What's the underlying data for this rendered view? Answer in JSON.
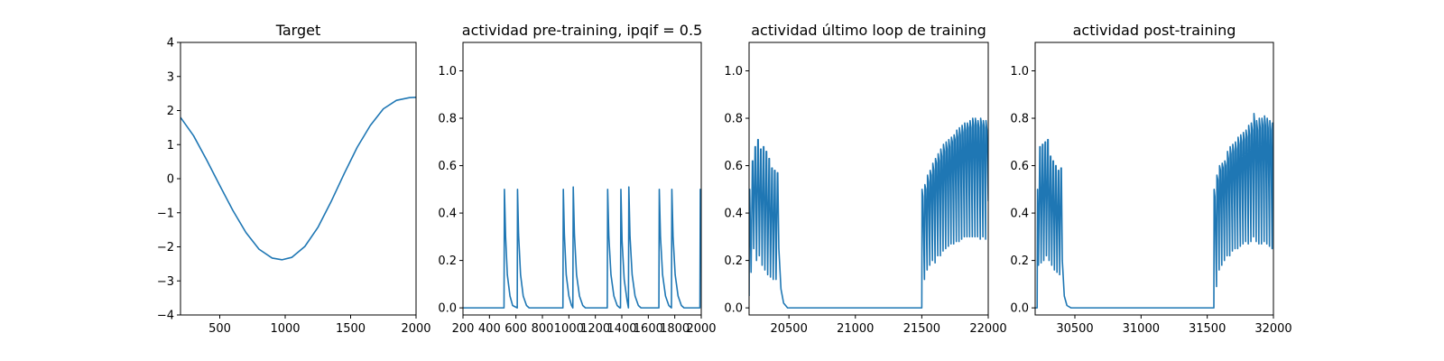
{
  "chart_data": [
    {
      "type": "line",
      "title": "Target",
      "xlim": [
        200,
        2000
      ],
      "ylim": [
        -4,
        4
      ],
      "xticks": [
        500,
        1000,
        1500,
        2000
      ],
      "yticks": [
        -4,
        -3,
        -2,
        -1,
        0,
        1,
        2,
        3,
        4
      ],
      "color": "#1f77b4",
      "series": [
        {
          "x": [
            200,
            300,
            400,
            500,
            600,
            700,
            800,
            900,
            975,
            1050,
            1150,
            1250,
            1350,
            1450,
            1550,
            1650,
            1750,
            1850,
            1950,
            2000
          ],
          "y": [
            1.8,
            1.26,
            0.55,
            -0.2,
            -0.93,
            -1.58,
            -2.07,
            -2.33,
            -2.38,
            -2.31,
            -1.99,
            -1.43,
            -0.68,
            0.14,
            0.92,
            1.56,
            2.05,
            2.3,
            2.38,
            2.39
          ]
        }
      ]
    },
    {
      "type": "line",
      "title": "actividad pre-training, ipqif = 0.5",
      "xlim": [
        200,
        2000
      ],
      "ylim": [
        -0.03,
        1.12
      ],
      "xticks": [
        200,
        400,
        600,
        800,
        1000,
        1200,
        1400,
        1600,
        1800,
        2000
      ],
      "yticks": [
        0.0,
        0.2,
        0.4,
        0.6,
        0.8,
        1.0
      ],
      "color": "#1f77b4",
      "series": [
        {
          "x": [
            200,
            510,
            513,
            522,
            535,
            555,
            575,
            610,
            612,
            620,
            635,
            655,
            680,
            700,
            955,
            958,
            966,
            980,
            1000,
            1020,
            1030,
            1033,
            1042,
            1058,
            1080,
            1105,
            1125,
            1290,
            1293,
            1302,
            1318,
            1340,
            1365,
            1385,
            1390,
            1393,
            1402,
            1418,
            1440,
            1450,
            1453,
            1462,
            1478,
            1500,
            1525,
            1545,
            1680,
            1683,
            1692,
            1708,
            1730,
            1755,
            1775,
            1775,
            1778,
            1787,
            1803,
            1825,
            1850,
            1870,
            1990,
            1993,
            2000
          ],
          "y": [
            0,
            0,
            0.5,
            0.3,
            0.14,
            0.05,
            0.01,
            0,
            0.5,
            0.31,
            0.14,
            0.05,
            0.01,
            0,
            0,
            0.5,
            0.31,
            0.14,
            0.05,
            0.01,
            0,
            0.51,
            0.31,
            0.14,
            0.05,
            0.01,
            0,
            0,
            0.5,
            0.3,
            0.14,
            0.05,
            0.01,
            0,
            0,
            0.5,
            0.28,
            0.12,
            0.03,
            0,
            0.51,
            0.3,
            0.14,
            0.05,
            0.01,
            0,
            0,
            0.5,
            0.3,
            0.14,
            0.05,
            0.01,
            0,
            0,
            0.5,
            0.3,
            0.14,
            0.05,
            0.01,
            0,
            0,
            0.5,
            0.32
          ]
        }
      ]
    },
    {
      "type": "line",
      "title": "actividad último loop de training",
      "xlim": [
        20200,
        22000
      ],
      "ylim": [
        -0.03,
        1.12
      ],
      "xticks": [
        20500,
        21000,
        21500,
        22000
      ],
      "yticks": [
        0.0,
        0.2,
        0.4,
        0.6,
        0.8,
        1.0
      ],
      "color": "#1f77b4",
      "series": [
        {
          "x": [
            20200,
            20202,
            20205,
            20215,
            20225,
            20228,
            20235,
            20245,
            20248,
            20256,
            20266,
            20269,
            20277,
            20287,
            20290,
            20298,
            20308,
            20311,
            20319,
            20329,
            20332,
            20340,
            20350,
            20353,
            20361,
            20371,
            20374,
            20382,
            20392,
            20395,
            20403,
            20413,
            20416,
            20424,
            20440,
            20460,
            20490,
            20520,
            21500,
            21502,
            21508,
            21520,
            21523,
            21530,
            21540,
            21543,
            21550,
            21560,
            21563,
            21570,
            21580,
            21583,
            21590,
            21600,
            21603,
            21610,
            21620,
            21623,
            21630,
            21640,
            21643,
            21650,
            21660,
            21663,
            21670,
            21680,
            21683,
            21690,
            21700,
            21703,
            21710,
            21720,
            21723,
            21730,
            21740,
            21743,
            21750,
            21760,
            21763,
            21770,
            21780,
            21783,
            21790,
            21800,
            21803,
            21810,
            21820,
            21823,
            21830,
            21840,
            21843,
            21850,
            21860,
            21863,
            21870,
            21880,
            21883,
            21890,
            21900,
            21903,
            21910,
            21920,
            21923,
            21930,
            21940,
            21943,
            21950,
            21960,
            21963,
            21970,
            21980,
            21983,
            21990,
            22000
          ],
          "y": [
            0.05,
            0.5,
            0.5,
            0.15,
            0.62,
            0.62,
            0.25,
            0.68,
            0.68,
            0.2,
            0.71,
            0.71,
            0.22,
            0.67,
            0.67,
            0.18,
            0.68,
            0.68,
            0.16,
            0.66,
            0.66,
            0.14,
            0.63,
            0.63,
            0.13,
            0.59,
            0.59,
            0.12,
            0.58,
            0.58,
            0.12,
            0.57,
            0.57,
            0.25,
            0.08,
            0.02,
            0,
            0,
            0,
            0.5,
            0.47,
            0.12,
            0.52,
            0.5,
            0.16,
            0.56,
            0.53,
            0.18,
            0.58,
            0.56,
            0.2,
            0.61,
            0.58,
            0.19,
            0.63,
            0.61,
            0.22,
            0.65,
            0.62,
            0.22,
            0.67,
            0.64,
            0.24,
            0.69,
            0.66,
            0.25,
            0.7,
            0.67,
            0.26,
            0.71,
            0.68,
            0.27,
            0.72,
            0.7,
            0.27,
            0.73,
            0.71,
            0.28,
            0.75,
            0.72,
            0.28,
            0.76,
            0.73,
            0.29,
            0.77,
            0.74,
            0.3,
            0.78,
            0.75,
            0.3,
            0.78,
            0.76,
            0.3,
            0.79,
            0.76,
            0.3,
            0.8,
            0.77,
            0.3,
            0.8,
            0.77,
            0.3,
            0.79,
            0.76,
            0.29,
            0.8,
            0.77,
            0.3,
            0.79,
            0.76,
            0.29,
            0.79,
            0.75,
            0.45
          ]
        }
      ]
    },
    {
      "type": "line",
      "title": "actividad post-training",
      "xlim": [
        30200,
        32000
      ],
      "ylim": [
        -0.03,
        1.12
      ],
      "xticks": [
        30500,
        31000,
        31500,
        32000
      ],
      "yticks": [
        0.0,
        0.2,
        0.4,
        0.6,
        0.8,
        1.0
      ],
      "color": "#1f77b4",
      "series": [
        {
          "x": [
            30200,
            30215,
            30218,
            30225,
            30235,
            30238,
            30245,
            30255,
            30258,
            30265,
            30275,
            30278,
            30285,
            30295,
            30298,
            30305,
            30315,
            30318,
            30325,
            30335,
            30338,
            30345,
            30355,
            30358,
            30365,
            30375,
            30378,
            30385,
            30395,
            30398,
            30405,
            30420,
            30440,
            30470,
            30500,
            31550,
            31552,
            31558,
            31570,
            31573,
            31580,
            31590,
            31593,
            31600,
            31610,
            31613,
            31620,
            31630,
            31633,
            31640,
            31650,
            31653,
            31660,
            31670,
            31673,
            31680,
            31690,
            31693,
            31700,
            31710,
            31713,
            31720,
            31730,
            31733,
            31740,
            31750,
            31753,
            31760,
            31770,
            31773,
            31780,
            31790,
            31793,
            31800,
            31810,
            31813,
            31820,
            31830,
            31833,
            31840,
            31850,
            31853,
            31860,
            31870,
            31873,
            31880,
            31890,
            31893,
            31900,
            31910,
            31913,
            31920,
            31930,
            31933,
            31940,
            31950,
            31953,
            31960,
            31970,
            31973,
            31980,
            31990,
            31993,
            32000
          ],
          "y": [
            0,
            0,
            0.5,
            0.18,
            0.68,
            0.68,
            0.19,
            0.69,
            0.69,
            0.2,
            0.7,
            0.7,
            0.22,
            0.71,
            0.71,
            0.2,
            0.64,
            0.64,
            0.18,
            0.62,
            0.62,
            0.16,
            0.6,
            0.6,
            0.15,
            0.58,
            0.58,
            0.14,
            0.59,
            0.59,
            0.2,
            0.05,
            0.01,
            0,
            0,
            0,
            0.5,
            0.47,
            0.09,
            0.56,
            0.54,
            0.16,
            0.6,
            0.58,
            0.18,
            0.61,
            0.59,
            0.2,
            0.62,
            0.6,
            0.22,
            0.66,
            0.63,
            0.22,
            0.68,
            0.65,
            0.24,
            0.69,
            0.66,
            0.25,
            0.7,
            0.67,
            0.25,
            0.72,
            0.69,
            0.26,
            0.73,
            0.7,
            0.27,
            0.74,
            0.71,
            0.28,
            0.75,
            0.72,
            0.27,
            0.77,
            0.73,
            0.28,
            0.78,
            0.75,
            0.3,
            0.82,
            0.77,
            0.28,
            0.79,
            0.75,
            0.27,
            0.8,
            0.76,
            0.27,
            0.8,
            0.77,
            0.28,
            0.81,
            0.77,
            0.27,
            0.8,
            0.76,
            0.26,
            0.79,
            0.75,
            0.25,
            0.78,
            0.75
          ]
        }
      ]
    }
  ]
}
